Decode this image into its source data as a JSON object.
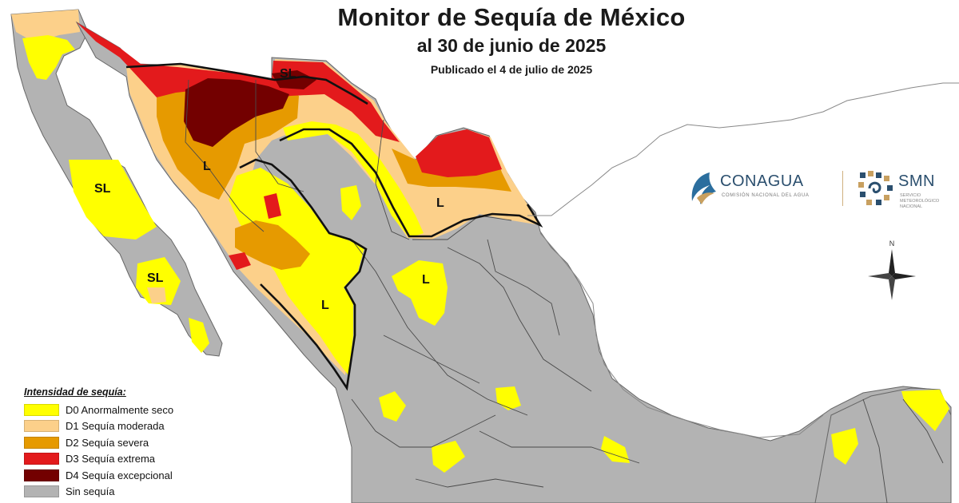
{
  "title": "Monitor de Sequía de México",
  "subtitle": "al 30 de junio de 2025",
  "published": "Publicado el 4 de julio de 2025",
  "zone_labels": [
    "SL",
    "SL",
    "SL",
    "L",
    "L",
    "L",
    "L"
  ],
  "legend": {
    "title": "Intensidad de sequía:",
    "items": [
      {
        "code": "D0",
        "label": "D0 Anormalmente seco",
        "color": "#ffff00"
      },
      {
        "code": "D1",
        "label": "D1 Sequía moderada",
        "color": "#fcd08a"
      },
      {
        "code": "D2",
        "label": "D2 Sequía severa",
        "color": "#e69a00"
      },
      {
        "code": "D3",
        "label": "D3 Sequía extrema",
        "color": "#e31a1c"
      },
      {
        "code": "D4",
        "label": "D4 Sequía excepcional",
        "color": "#730000"
      },
      {
        "code": "none",
        "label": "Sin sequía",
        "color": "#b3b3b3"
      }
    ]
  },
  "logos": {
    "conagua": "CONAGUA",
    "conagua_sub": "COMISIÓN NACIONAL DEL AGUA",
    "smn": "SMN",
    "smn_sub": "SERVICIO METEOROLÓGICO NACIONAL"
  },
  "compass_label": "N",
  "colors": {
    "land_no_drought": "#b3b3b3",
    "land_outside": "#ffffff",
    "borders": "#4a4a4a",
    "impact_lines": "#111111"
  }
}
